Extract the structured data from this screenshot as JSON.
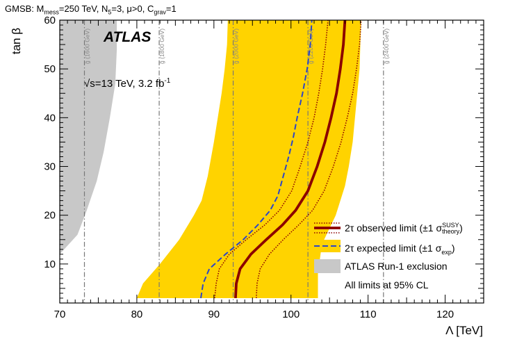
{
  "header": {
    "prefix": "GMSB: M",
    "mmess_sub": "mess",
    "mid1": "=250 TeV, N",
    "n5_sub": "5",
    "mid2": "=3, μ>0, C",
    "cgrav_sub": "grav",
    "suffix": "=1"
  },
  "atlas_label": "ATLAS",
  "energy": {
    "sqrt_sign": "√",
    "text": "s=13 TeV, 3.2 fb",
    "sup": "-1"
  },
  "colors": {
    "observed": "#8b0000",
    "expected": "#2b45c9",
    "band": "#ffd300",
    "run1": "#c8c8c8",
    "gluino_lines": "#777777"
  },
  "legend": {
    "observed_main": "2τ observed limit (±1 σ",
    "observed_sup": "SUSY",
    "observed_sub": "theory",
    "observed_close": ")",
    "expected_main": "2τ expected limit (±1 σ",
    "expected_sub": "exp",
    "expected_close": ")",
    "run1": "ATLAS Run-1 exclusion",
    "note": "All limits at 95% CL"
  },
  "chart_data": {
    "type": "line",
    "title": "",
    "xlabel": "Λ [TeV]",
    "ylabel": "tan β",
    "xlim": [
      70,
      125
    ],
    "ylim": [
      2,
      60
    ],
    "x_ticks": [
      70,
      80,
      90,
      100,
      110,
      120
    ],
    "y_ticks": [
      10,
      20,
      30,
      40,
      50,
      60
    ],
    "gluino_mass_lines": [
      {
        "x": 73.2,
        "label": "g̃ (1600 GeV)"
      },
      {
        "x": 82.9,
        "label": "g̃ (1800 GeV)"
      },
      {
        "x": 92.5,
        "label": "g̃ (2000 GeV)"
      },
      {
        "x": 102.2,
        "label": "g̃ (2200 GeV)"
      },
      {
        "x": 112.0,
        "label": "g̃ (2400 GeV)"
      }
    ],
    "series": [
      {
        "name": "observed",
        "tanb": [
          3,
          6,
          9,
          12,
          15,
          18,
          21,
          25,
          30,
          35,
          40,
          45,
          50,
          55,
          60
        ],
        "lambda": [
          92.8,
          92.9,
          93.4,
          94.8,
          96.8,
          98.9,
          100.6,
          102.2,
          103.4,
          104.4,
          105.2,
          105.9,
          106.4,
          106.8,
          107.0
        ]
      },
      {
        "name": "observed +1sigma theory",
        "tanb": [
          3,
          6,
          9,
          12,
          15,
          18,
          21,
          25,
          30,
          35,
          40,
          45,
          50,
          55,
          60
        ],
        "lambda": [
          95.5,
          95.6,
          96.0,
          97.2,
          99.0,
          101.0,
          102.8,
          104.3,
          105.5,
          106.5,
          107.3,
          108.0,
          108.5,
          108.9,
          109.1
        ]
      },
      {
        "name": "observed -1sigma theory",
        "tanb": [
          3,
          6,
          9,
          12,
          15,
          18,
          21,
          25,
          30,
          35,
          40,
          45,
          50,
          55,
          60
        ],
        "lambda": [
          90.1,
          90.3,
          90.7,
          92.0,
          94.2,
          96.6,
          98.5,
          100.1,
          101.2,
          102.2,
          103.0,
          103.6,
          104.1,
          104.5,
          104.8
        ]
      },
      {
        "name": "expected",
        "tanb": [
          3,
          6,
          9,
          12,
          15,
          18,
          21,
          24,
          28,
          32,
          36,
          40,
          45,
          50,
          55,
          60
        ],
        "lambda": [
          88.3,
          88.6,
          89.4,
          91.5,
          93.8,
          95.7,
          97.3,
          98.3,
          99.0,
          99.7,
          100.3,
          100.8,
          101.5,
          102.1,
          102.5,
          102.7
        ]
      },
      {
        "name": "expected +1sigma exp",
        "tanb": [
          3,
          8,
          14,
          20,
          26,
          30,
          35,
          40,
          45,
          50,
          55,
          60
        ],
        "lambda": [
          103.5,
          103.5,
          104.0,
          105.8,
          107.0,
          107.5,
          108.0,
          108.3,
          108.6,
          108.9,
          109.0,
          109.1
        ]
      },
      {
        "name": "expected -1sigma exp",
        "tanb": [
          3,
          6,
          10,
          15,
          20,
          23,
          28,
          35,
          40,
          45,
          50,
          55,
          60
        ],
        "lambda": [
          80.0,
          80.8,
          83.0,
          85.5,
          87.4,
          88.4,
          89.2,
          90.0,
          90.5,
          91.0,
          91.4,
          91.7,
          91.8
        ]
      },
      {
        "name": "ATLAS Run-1 exclusion",
        "tanb": [
          2,
          12,
          16,
          21,
          27,
          33,
          40,
          47,
          54,
          60
        ],
        "lambda": [
          70,
          70,
          72.3,
          73.5,
          74.8,
          75.7,
          76.5,
          77.2,
          77.4,
          77.4
        ]
      }
    ]
  }
}
